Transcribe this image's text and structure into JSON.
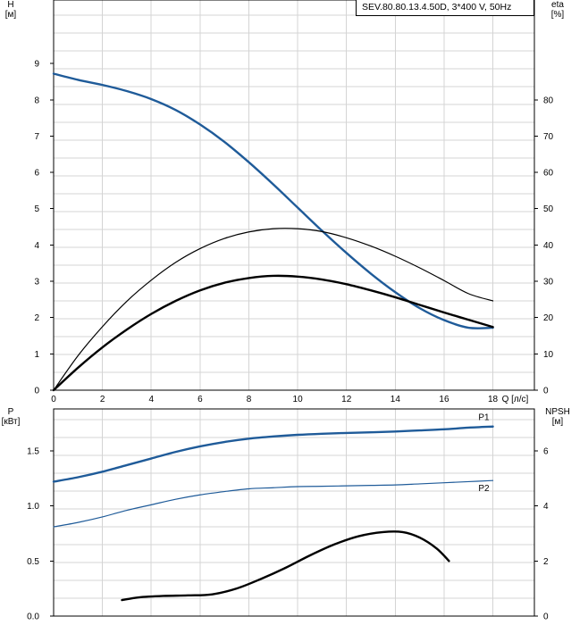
{
  "info_box": {
    "label": "SEV.80.80.13.4.50D, 3*400 V, 50Hz"
  },
  "chart_data": [
    {
      "type": "line",
      "panel": "top",
      "left_axis": {
        "label_line1": "H",
        "label_line2": "[м]",
        "ticks": [
          0,
          1,
          2,
          3,
          4,
          5,
          6,
          7,
          8,
          9
        ],
        "range": [
          0,
          10.75
        ]
      },
      "right_axis": {
        "label_line1": "eta",
        "label_line2": "[%]",
        "ticks": [
          0,
          10,
          20,
          30,
          40,
          50,
          60,
          70,
          80
        ],
        "range": [
          0,
          107.5
        ]
      },
      "x_axis": {
        "ticks": [
          0,
          2,
          4,
          6,
          8,
          10,
          12,
          14,
          16,
          18
        ],
        "unit_label": "Q [л/с]",
        "range": [
          0,
          19.7
        ]
      },
      "grid": true,
      "series": [
        {
          "axis": "left",
          "color": "#1f5b99",
          "width": 2.4,
          "points": [
            [
              0,
              8.72
            ],
            [
              1,
              8.55
            ],
            [
              2,
              8.41
            ],
            [
              3,
              8.24
            ],
            [
              4,
              8.02
            ],
            [
              5,
              7.72
            ],
            [
              6,
              7.32
            ],
            [
              7,
              6.84
            ],
            [
              8,
              6.28
            ],
            [
              9,
              5.67
            ],
            [
              10,
              5.03
            ],
            [
              11,
              4.39
            ],
            [
              12,
              3.78
            ],
            [
              13,
              3.21
            ],
            [
              14,
              2.7
            ],
            [
              15,
              2.26
            ],
            [
              16,
              1.93
            ],
            [
              17,
              1.72
            ],
            [
              18,
              1.72
            ]
          ]
        },
        {
          "axis": "right",
          "color": "#000000",
          "width": 1.2,
          "points": [
            [
              0,
              0
            ],
            [
              1,
              9.5
            ],
            [
              2,
              17.5
            ],
            [
              3,
              24.5
            ],
            [
              4,
              30.3
            ],
            [
              5,
              35.2
            ],
            [
              6,
              39.0
            ],
            [
              7,
              41.8
            ],
            [
              8,
              43.6
            ],
            [
              9,
              44.5
            ],
            [
              10,
              44.5
            ],
            [
              11,
              43.7
            ],
            [
              12,
              42.0
            ],
            [
              13,
              39.7
            ],
            [
              14,
              36.9
            ],
            [
              15,
              33.7
            ],
            [
              16,
              30.2
            ],
            [
              17,
              26.6
            ],
            [
              18,
              24.6
            ]
          ]
        },
        {
          "axis": "left",
          "color": "#000000",
          "width": 2.4,
          "points": [
            [
              0,
              0
            ],
            [
              1,
              0.62
            ],
            [
              2,
              1.18
            ],
            [
              3,
              1.67
            ],
            [
              4,
              2.1
            ],
            [
              5,
              2.46
            ],
            [
              6,
              2.75
            ],
            [
              7,
              2.96
            ],
            [
              8,
              3.09
            ],
            [
              9,
              3.15
            ],
            [
              10,
              3.13
            ],
            [
              11,
              3.05
            ],
            [
              12,
              2.92
            ],
            [
              13,
              2.75
            ],
            [
              14,
              2.56
            ],
            [
              15,
              2.35
            ],
            [
              16,
              2.14
            ],
            [
              17,
              1.94
            ],
            [
              18,
              1.74
            ]
          ]
        }
      ]
    },
    {
      "type": "line",
      "panel": "bottom",
      "left_axis": {
        "label_line1": "P",
        "label_line2": "[кВт]",
        "ticks": [
          "0.0",
          "0.5",
          "1.0",
          "1.5"
        ],
        "range": [
          0,
          1.88
        ]
      },
      "right_axis": {
        "label_line1": "NPSH",
        "label_line2": "[м]",
        "ticks": [
          0,
          2,
          4,
          6
        ],
        "range": [
          0,
          7.52
        ]
      },
      "grid": true,
      "series": [
        {
          "name": "P1",
          "axis": "left",
          "color": "#1f5b99",
          "width": 2.4,
          "points": [
            [
              0,
              1.22
            ],
            [
              1,
              1.26
            ],
            [
              2,
              1.31
            ],
            [
              3,
              1.37
            ],
            [
              4,
              1.43
            ],
            [
              5,
              1.49
            ],
            [
              6,
              1.54
            ],
            [
              7,
              1.58
            ],
            [
              8,
              1.61
            ],
            [
              9,
              1.63
            ],
            [
              10,
              1.645
            ],
            [
              11,
              1.655
            ],
            [
              12,
              1.662
            ],
            [
              13,
              1.668
            ],
            [
              14,
              1.675
            ],
            [
              15,
              1.685
            ],
            [
              16,
              1.695
            ],
            [
              17,
              1.71
            ],
            [
              18,
              1.72
            ]
          ]
        },
        {
          "name": "P2",
          "axis": "left",
          "color": "#1f5b99",
          "width": 1.2,
          "points": [
            [
              0,
              0.81
            ],
            [
              1,
              0.85
            ],
            [
              2,
              0.9
            ],
            [
              3,
              0.96
            ],
            [
              4,
              1.01
            ],
            [
              5,
              1.06
            ],
            [
              6,
              1.1
            ],
            [
              7,
              1.13
            ],
            [
              8,
              1.155
            ],
            [
              9,
              1.165
            ],
            [
              10,
              1.175
            ],
            [
              11,
              1.178
            ],
            [
              12,
              1.182
            ],
            [
              13,
              1.186
            ],
            [
              14,
              1.19
            ],
            [
              15,
              1.2
            ],
            [
              16,
              1.21
            ],
            [
              17,
              1.22
            ],
            [
              18,
              1.23
            ]
          ]
        },
        {
          "axis": "right",
          "color": "#000000",
          "width": 2.4,
          "points": [
            [
              2.8,
              0.58
            ],
            [
              3.5,
              0.68
            ],
            [
              4.5,
              0.73
            ],
            [
              5.5,
              0.75
            ],
            [
              6.5,
              0.79
            ],
            [
              7.5,
              1.0
            ],
            [
              8.5,
              1.35
            ],
            [
              9.5,
              1.75
            ],
            [
              10.5,
              2.2
            ],
            [
              11.5,
              2.6
            ],
            [
              12.5,
              2.9
            ],
            [
              13.5,
              3.05
            ],
            [
              14.3,
              3.05
            ],
            [
              15,
              2.85
            ],
            [
              15.7,
              2.45
            ],
            [
              16.2,
              2.0
            ]
          ]
        }
      ]
    }
  ]
}
